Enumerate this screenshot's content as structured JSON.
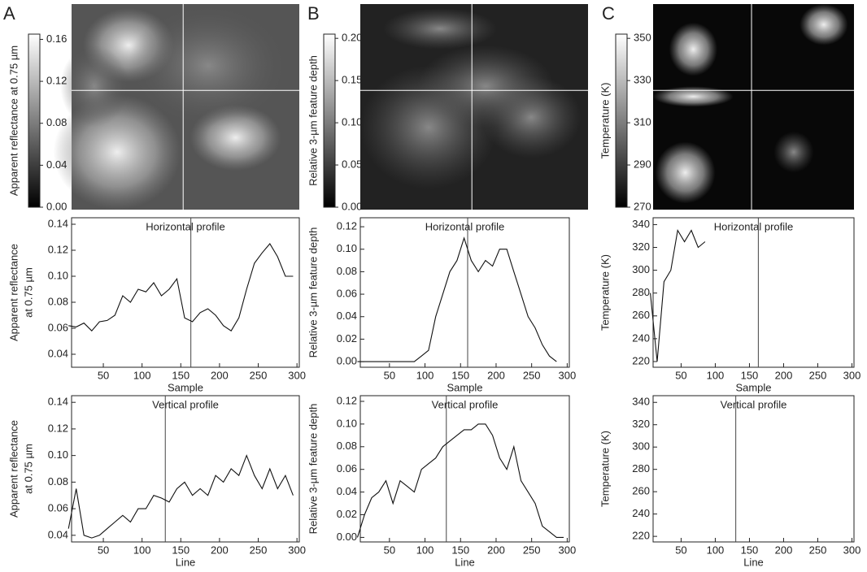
{
  "chart_data": [
    {
      "type": "image",
      "panel": "A",
      "ylabel": "Apparent reflectance at 0.75 µm",
      "ylim": [
        0,
        0.165
      ],
      "yticks": [
        {
          "value": 0,
          "label": "0.00"
        },
        {
          "value": 0.04,
          "label": "0.04"
        },
        {
          "value": 0.08,
          "label": "0.08"
        },
        {
          "value": 0.12,
          "label": "0.12"
        },
        {
          "value": 0.16,
          "label": "0.16"
        }
      ]
    },
    {
      "type": "line",
      "title": "Horizontal profile",
      "xlabel": "Sample",
      "ylabel": [
        "Apparent reflectance",
        "at 0.75 µm"
      ],
      "xlim": [
        9,
        303
      ],
      "xticks": [
        50,
        100,
        150,
        200,
        250,
        300
      ],
      "ylim": [
        0.03,
        0.145
      ],
      "yticks": [
        {
          "value": 0.04,
          "label": "0.04"
        },
        {
          "value": 0.06,
          "label": "0.06"
        },
        {
          "value": 0.08,
          "label": "0.08"
        },
        {
          "value": 0.1,
          "label": "0.10"
        },
        {
          "value": 0.12,
          "label": "0.12"
        },
        {
          "value": 0.14,
          "label": "0.14"
        }
      ],
      "cursor_x": 163,
      "color": "#111111",
      "x": [
        5,
        15,
        25,
        35,
        45,
        55,
        65,
        75,
        85,
        95,
        105,
        115,
        125,
        135,
        145,
        155,
        165,
        175,
        185,
        195,
        205,
        215,
        225,
        235,
        245,
        255,
        265,
        275,
        285,
        295
      ],
      "values": [
        0.062,
        0.061,
        0.064,
        0.058,
        0.065,
        0.066,
        0.07,
        0.085,
        0.08,
        0.09,
        0.088,
        0.095,
        0.085,
        0.09,
        0.098,
        0.068,
        0.065,
        0.072,
        0.075,
        0.07,
        0.062,
        0.058,
        0.068,
        0.09,
        0.11,
        0.118,
        0.125,
        0.115,
        0.1,
        0.1
      ]
    },
    {
      "type": "line",
      "title": "Vertical profile",
      "xlabel": "Line",
      "ylabel": [
        "Apparent reflectance",
        "at 0.75 µm"
      ],
      "xlim": [
        9,
        303
      ],
      "xticks": [
        50,
        100,
        150,
        200,
        250,
        300
      ],
      "ylim": [
        0.035,
        0.145
      ],
      "yticks": [
        {
          "value": 0.04,
          "label": "0.04"
        },
        {
          "value": 0.06,
          "label": "0.06"
        },
        {
          "value": 0.08,
          "label": "0.08"
        },
        {
          "value": 0.1,
          "label": "0.10"
        },
        {
          "value": 0.12,
          "label": "0.12"
        },
        {
          "value": 0.14,
          "label": "0.14"
        }
      ],
      "cursor_x": 130,
      "color": "#111111",
      "x": [
        5,
        15,
        25,
        35,
        45,
        55,
        65,
        75,
        85,
        95,
        105,
        115,
        125,
        135,
        145,
        155,
        165,
        175,
        185,
        195,
        205,
        215,
        225,
        235,
        245,
        255,
        265,
        275,
        285,
        295
      ],
      "values": [
        0.045,
        0.075,
        0.04,
        0.038,
        0.04,
        0.045,
        0.05,
        0.055,
        0.05,
        0.06,
        0.06,
        0.07,
        0.068,
        0.065,
        0.075,
        0.08,
        0.07,
        0.075,
        0.07,
        0.085,
        0.08,
        0.09,
        0.085,
        0.1,
        0.085,
        0.075,
        0.09,
        0.075,
        0.085,
        0.07
      ]
    },
    {
      "type": "image",
      "panel": "B",
      "ylabel": "Relative 3-µm feature depth",
      "ylim": [
        0,
        0.205
      ],
      "yticks": [
        {
          "value": 0,
          "label": "0.00"
        },
        {
          "value": 0.05,
          "label": "0.05"
        },
        {
          "value": 0.1,
          "label": "0.10"
        },
        {
          "value": 0.15,
          "label": "0.15"
        },
        {
          "value": 0.2,
          "label": "0.20"
        }
      ]
    },
    {
      "type": "line",
      "title": "Horizontal profile",
      "xlabel": "Sample",
      "ylabel": [
        "Relative 3-µm feature depth"
      ],
      "xlim": [
        9,
        303
      ],
      "xticks": [
        50,
        100,
        150,
        200,
        250,
        300
      ],
      "ylim": [
        -0.005,
        0.128
      ],
      "yticks": [
        {
          "value": 0,
          "label": "0.00"
        },
        {
          "value": 0.02,
          "label": "0.02"
        },
        {
          "value": 0.04,
          "label": "0.04"
        },
        {
          "value": 0.06,
          "label": "0.06"
        },
        {
          "value": 0.08,
          "label": "0.08"
        },
        {
          "value": 0.1,
          "label": "0.10"
        },
        {
          "value": 0.12,
          "label": "0.12"
        }
      ],
      "cursor_x": 160,
      "color": "#111111",
      "x": [
        5,
        15,
        25,
        35,
        45,
        55,
        65,
        75,
        85,
        95,
        105,
        115,
        125,
        135,
        145,
        155,
        165,
        175,
        185,
        195,
        205,
        215,
        225,
        235,
        245,
        255,
        265,
        275,
        285,
        295
      ],
      "values": [
        0,
        0,
        0,
        0,
        0,
        0,
        0,
        0,
        0,
        0.005,
        0.01,
        0.04,
        0.06,
        0.08,
        0.09,
        0.11,
        0.09,
        0.08,
        0.09,
        0.085,
        0.1,
        0.1,
        0.08,
        0.06,
        0.04,
        0.03,
        0.015,
        0.005,
        0,
        null
      ]
    },
    {
      "type": "line",
      "title": "Vertical profile",
      "xlabel": "Line",
      "ylabel": [
        "Relative 3-µm feature depth"
      ],
      "xlim": [
        9,
        303
      ],
      "xticks": [
        50,
        100,
        150,
        200,
        250,
        300
      ],
      "ylim": [
        -0.004,
        0.125
      ],
      "yticks": [
        {
          "value": 0,
          "label": "0.00"
        },
        {
          "value": 0.02,
          "label": "0.02"
        },
        {
          "value": 0.04,
          "label": "0.04"
        },
        {
          "value": 0.06,
          "label": "0.06"
        },
        {
          "value": 0.08,
          "label": "0.08"
        },
        {
          "value": 0.1,
          "label": "0.10"
        },
        {
          "value": 0.12,
          "label": "0.12"
        }
      ],
      "cursor_x": 130,
      "color": "#111111",
      "x": [
        5,
        15,
        25,
        35,
        45,
        55,
        65,
        75,
        85,
        95,
        105,
        115,
        125,
        135,
        145,
        155,
        165,
        175,
        185,
        195,
        205,
        215,
        225,
        235,
        245,
        255,
        265,
        275,
        285,
        295
      ],
      "values": [
        0,
        0.02,
        0.035,
        0.04,
        0.05,
        0.03,
        0.05,
        0.045,
        0.04,
        0.06,
        0.065,
        0.07,
        0.08,
        0.085,
        0.09,
        0.095,
        0.095,
        0.1,
        0.1,
        0.09,
        0.07,
        0.06,
        0.08,
        0.05,
        0.04,
        0.03,
        0.01,
        0.005,
        0,
        0
      ]
    },
    {
      "type": "image",
      "panel": "C",
      "ylabel": "Temperature (K)",
      "ylim": [
        270,
        352
      ],
      "yticks": [
        270,
        290,
        310,
        330,
        350
      ]
    },
    {
      "type": "line",
      "title": "Horizontal profile",
      "xlabel": "Sample",
      "ylabel": [
        "Temperature (K)"
      ],
      "xlim": [
        9,
        303
      ],
      "xticks": [
        50,
        100,
        150,
        200,
        250,
        300
      ],
      "ylim": [
        215,
        346
      ],
      "yticks": [
        220,
        240,
        260,
        280,
        300,
        320,
        340
      ],
      "cursor_x": 163,
      "color": "#111111",
      "x": [
        5,
        15,
        25,
        35,
        45,
        55,
        65,
        75,
        85,
        95,
        105,
        115,
        125,
        135,
        145,
        155,
        165,
        175,
        185,
        195,
        205,
        215,
        225,
        235,
        245,
        255,
        265,
        275,
        285,
        295
      ],
      "values": [
        280,
        220,
        290,
        300,
        335,
        325,
        335,
        320,
        325,
        null,
        null,
        null,
        null,
        null,
        null,
        null,
        null,
        null,
        null,
        null,
        null,
        null,
        null,
        null,
        null,
        null,
        null,
        null,
        null,
        null
      ]
    },
    {
      "type": "line",
      "title": "Vertical profile",
      "xlabel": "Line",
      "ylabel": [
        "Temperature (K)"
      ],
      "xlim": [
        9,
        303
      ],
      "xticks": [
        50,
        100,
        150,
        200,
        250,
        300
      ],
      "ylim": [
        215,
        346
      ],
      "yticks": [
        220,
        240,
        260,
        280,
        300,
        320,
        340
      ],
      "cursor_x": 130,
      "color": "#111111",
      "x": [],
      "values": []
    }
  ]
}
